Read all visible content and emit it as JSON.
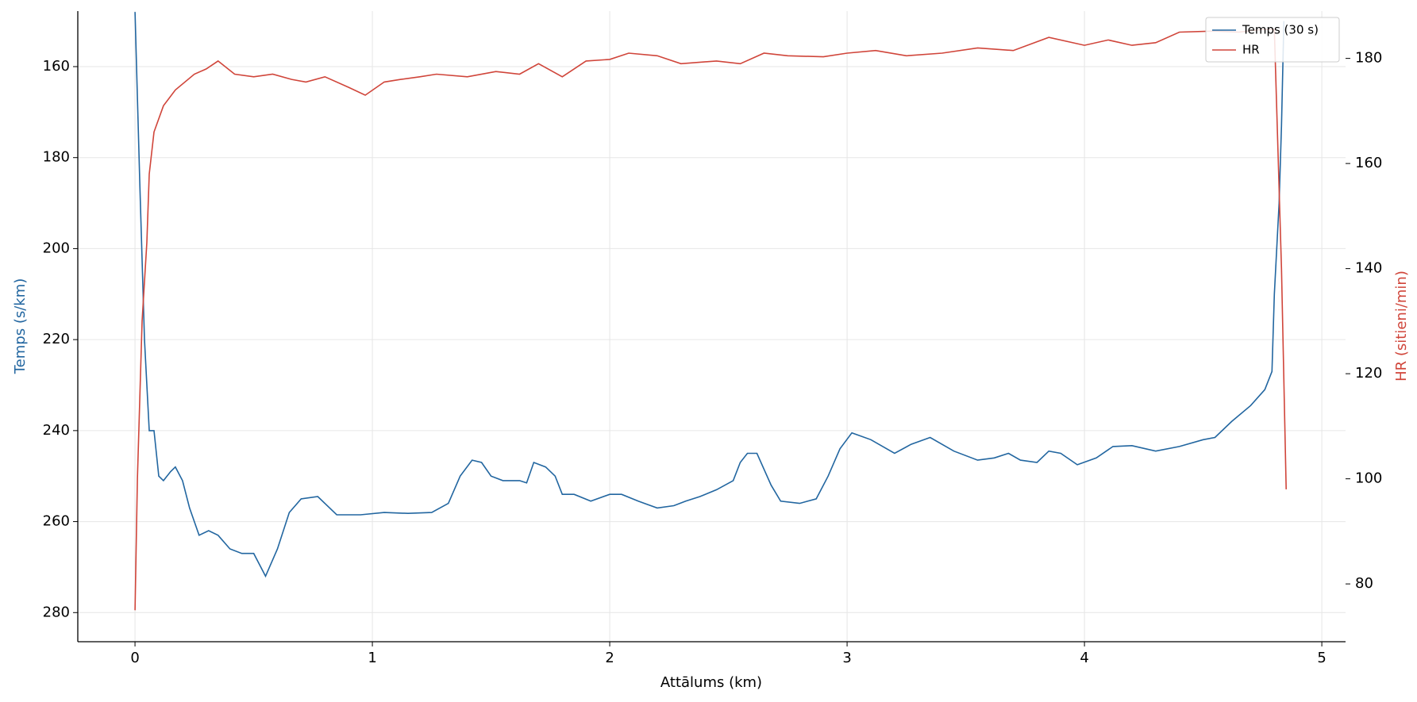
{
  "chart_data": {
    "type": "line",
    "xlabel": "Attālums (km)",
    "ylabel": "Temps (s/km)",
    "y2label": "HR (sitieni/min)",
    "xlim": [
      -0.241,
      5.1
    ],
    "xticks": [
      0,
      1,
      2,
      3,
      4,
      5
    ],
    "ylim": [
      286.4,
      147.8
    ],
    "yticks": [
      160,
      180,
      200,
      220,
      240,
      260,
      280
    ],
    "y2lim": [
      69,
      189
    ],
    "y2ticks": [
      80,
      100,
      120,
      140,
      160,
      180
    ],
    "grid": true,
    "legend": "upper right",
    "series": [
      {
        "name": "Temps (30 s)",
        "color": "#2266a0",
        "axis": "y",
        "x": [
          0.0,
          0.02,
          0.04,
          0.06,
          0.08,
          0.1,
          0.12,
          0.15,
          0.17,
          0.2,
          0.23,
          0.27,
          0.31,
          0.35,
          0.4,
          0.45,
          0.5,
          0.55,
          0.6,
          0.65,
          0.7,
          0.77,
          0.85,
          0.95,
          1.05,
          1.15,
          1.25,
          1.32,
          1.37,
          1.42,
          1.46,
          1.5,
          1.55,
          1.62,
          1.65,
          1.68,
          1.73,
          1.77,
          1.8,
          1.85,
          1.92,
          2.0,
          2.05,
          2.12,
          2.2,
          2.27,
          2.32,
          2.38,
          2.45,
          2.52,
          2.55,
          2.58,
          2.62,
          2.68,
          2.72,
          2.8,
          2.87,
          2.92,
          2.97,
          3.02,
          3.1,
          3.2,
          3.27,
          3.35,
          3.45,
          3.55,
          3.62,
          3.68,
          3.73,
          3.8,
          3.85,
          3.9,
          3.97,
          4.05,
          4.12,
          4.2,
          4.3,
          4.4,
          4.5,
          4.55,
          4.62,
          4.7,
          4.76,
          4.79,
          4.8,
          4.82,
          4.83,
          4.84
        ],
        "values": [
          148,
          185,
          220,
          240,
          240,
          250,
          251,
          249,
          248,
          251,
          257,
          263,
          262,
          263,
          266,
          267,
          267,
          272,
          266,
          258,
          255,
          254.5,
          258.5,
          258.5,
          258,
          258.2,
          258,
          256,
          250,
          246.5,
          247,
          250,
          251,
          251,
          251.5,
          247,
          248,
          250,
          254,
          254,
          255.5,
          254,
          254,
          255.5,
          257,
          256.5,
          255.5,
          254.5,
          253,
          251,
          247,
          245,
          245,
          252,
          255.5,
          256,
          255,
          250,
          244,
          240.5,
          242,
          245,
          243,
          241.5,
          244.5,
          246.5,
          246,
          245,
          246.5,
          247,
          244.5,
          245,
          247.5,
          246,
          243.5,
          243.3,
          244.5,
          243.5,
          242,
          241.5,
          238,
          234.5,
          231,
          227,
          210,
          190,
          173,
          150
        ]
      },
      {
        "name": "HR",
        "color": "#d0453a",
        "axis": "y2",
        "x": [
          0.0,
          0.01,
          0.03,
          0.05,
          0.06,
          0.08,
          0.12,
          0.17,
          0.25,
          0.3,
          0.35,
          0.42,
          0.5,
          0.58,
          0.66,
          0.72,
          0.8,
          0.9,
          0.97,
          1.05,
          1.12,
          1.2,
          1.27,
          1.4,
          1.52,
          1.62,
          1.7,
          1.8,
          1.9,
          2.0,
          2.08,
          2.2,
          2.3,
          2.45,
          2.55,
          2.65,
          2.75,
          2.9,
          3.0,
          3.12,
          3.25,
          3.4,
          3.55,
          3.7,
          3.85,
          4.0,
          4.1,
          4.2,
          4.3,
          4.4,
          4.55,
          4.65,
          4.75,
          4.8,
          4.83,
          4.85
        ],
        "values": [
          75,
          100,
          130,
          145,
          158,
          166,
          171,
          174,
          177,
          178,
          179.5,
          177,
          176.5,
          177,
          176,
          175.5,
          176.5,
          174.5,
          173,
          175.5,
          176,
          176.5,
          177,
          176.5,
          177.5,
          177,
          179,
          176.5,
          179.5,
          179.8,
          181,
          180.5,
          179,
          179.5,
          179,
          181,
          180.5,
          180.3,
          181,
          181.5,
          180.5,
          181,
          182,
          181.5,
          184,
          182.5,
          183.5,
          182.5,
          183,
          185,
          185.2,
          185,
          185.5,
          185.5,
          140,
          98
        ]
      }
    ]
  }
}
